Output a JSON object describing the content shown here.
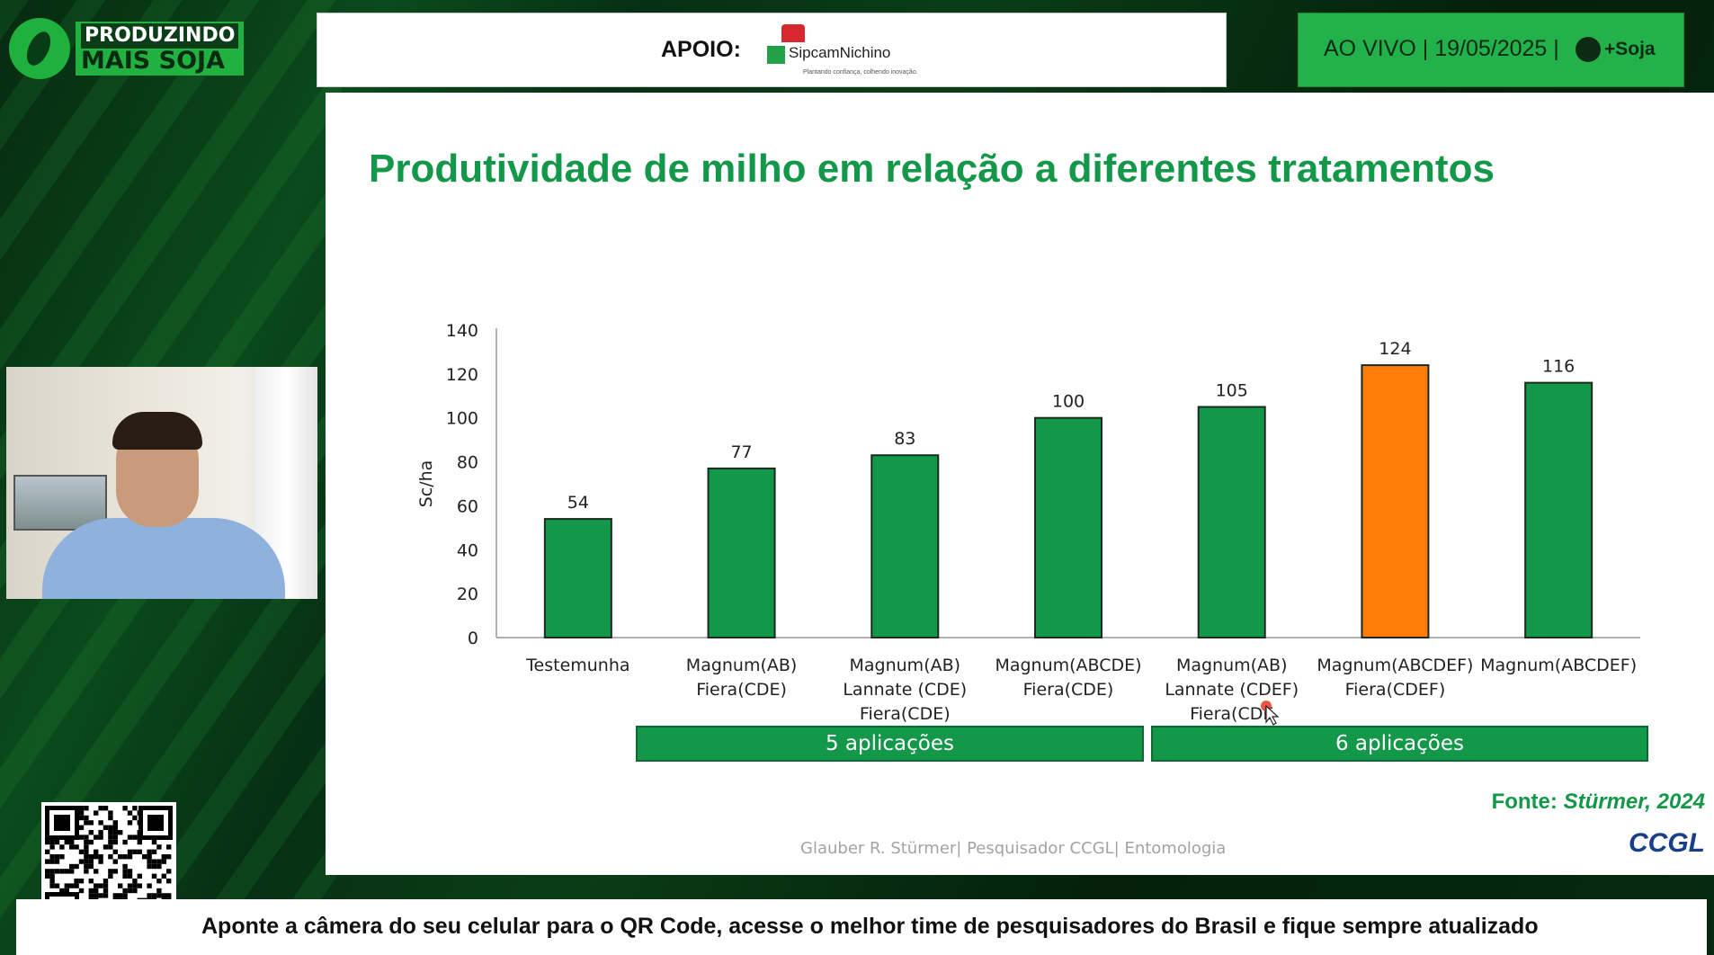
{
  "brand": {
    "line1": "PRODUZINDO",
    "line2": "MAIS SOJA"
  },
  "sponsor": {
    "label": "APOIO:",
    "name": "SipcamNichino",
    "tagline": "Plantando confiança, colhendo inovação."
  },
  "live": {
    "text": "AO VIVO | 19/05/2025 |",
    "brand": "+Soja"
  },
  "slide": {
    "title": "Produtividade de milho em relação a diferentes tratamentos",
    "source_label": "Fonte:",
    "source_value": "Stürmer, 2024",
    "credit": "Glauber R. Stürmer| Pesquisador CCGL| Entomologia",
    "logo": "CCGL",
    "groups": [
      {
        "label": "5 aplicações"
      },
      {
        "label": "6 aplicações"
      }
    ]
  },
  "chart_data": {
    "type": "bar",
    "title": "Produtividade de milho em relação a diferentes tratamentos",
    "ylabel": "Sc/ha",
    "xlabel": "",
    "ylim": [
      0,
      140
    ],
    "yticks": [
      0,
      20,
      40,
      60,
      80,
      100,
      120,
      140
    ],
    "grid": false,
    "categories": [
      [
        "Testemunha"
      ],
      [
        "Magnum(AB)",
        "Fiera(CDE)"
      ],
      [
        "Magnum(AB)",
        "Lannate (CDE)",
        "Fiera(CDE)"
      ],
      [
        "Magnum(ABCDE)",
        "Fiera(CDE)"
      ],
      [
        "Magnum(AB)",
        "Lannate (CDEF)",
        "Fiera(CDE"
      ],
      [
        "Magnum(ABCDEF)",
        "Fiera(CDEF)"
      ],
      [
        "Magnum(ABCDEF)"
      ]
    ],
    "values": [
      54,
      77,
      83,
      100,
      105,
      124,
      116
    ],
    "colors": [
      "#13984a",
      "#13984a",
      "#13984a",
      "#13984a",
      "#13984a",
      "#ff7c0a",
      "#13984a"
    ],
    "data_labels": true
  },
  "banner": {
    "text": "Aponte a câmera do seu celular para o QR Code, acesse o melhor time de pesquisadores do Brasil e fique sempre atualizado"
  }
}
